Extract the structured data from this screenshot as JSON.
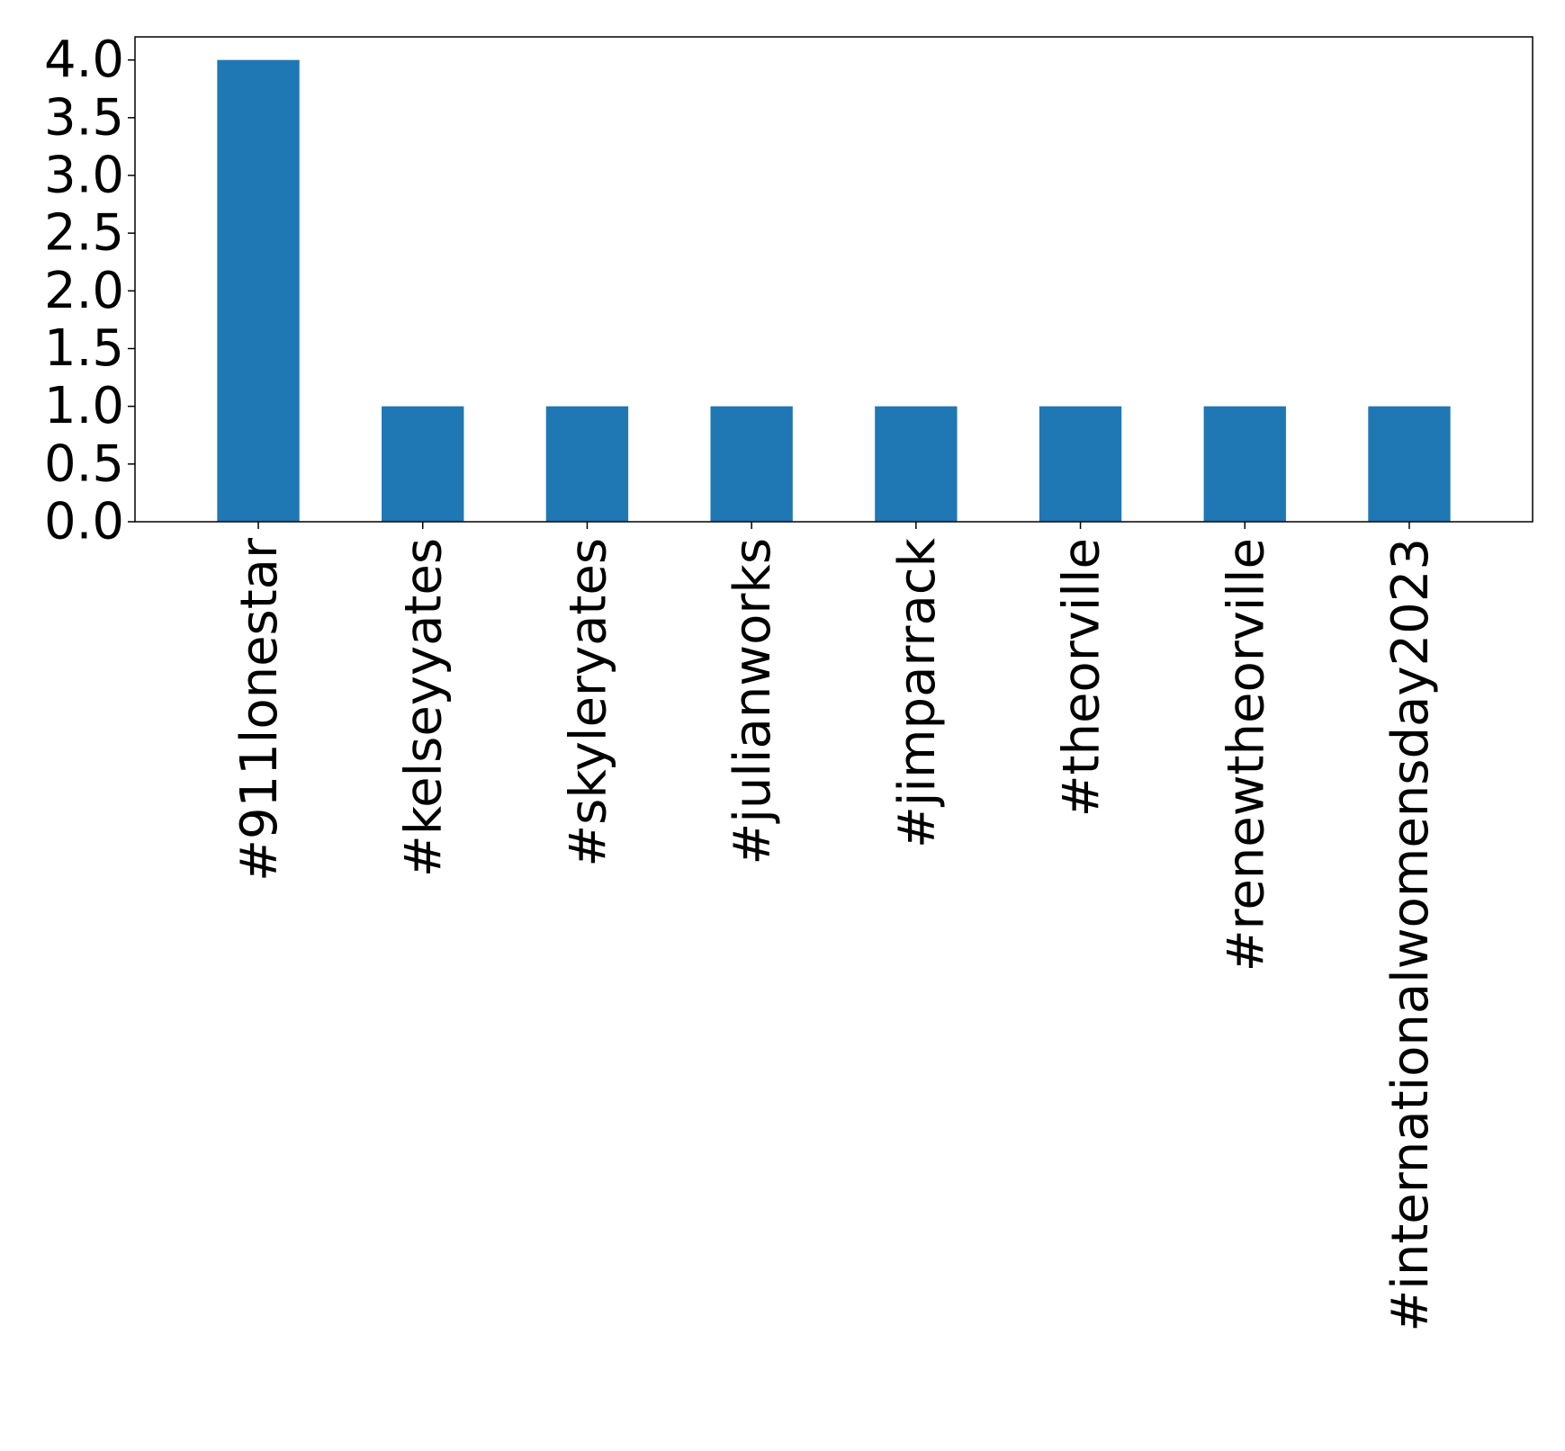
{
  "chart_data": {
    "type": "bar",
    "title": "",
    "xlabel": "",
    "ylabel": "",
    "categories": [
      "#911lonestar",
      "#kelseyyates",
      "#skyleryates",
      "#julianworks",
      "#jimparrack",
      "#theorville",
      "#renewtheorville",
      "#internationalwomensday2023"
    ],
    "values": [
      4,
      1,
      1,
      1,
      1,
      1,
      1,
      1
    ],
    "ylim": [
      0,
      4.2
    ],
    "yticks": [
      "0.0",
      "0.5",
      "1.0",
      "1.5",
      "2.0",
      "2.5",
      "3.0",
      "3.5",
      "4.0"
    ],
    "grid": false,
    "bar_color": "#1f77b4"
  }
}
